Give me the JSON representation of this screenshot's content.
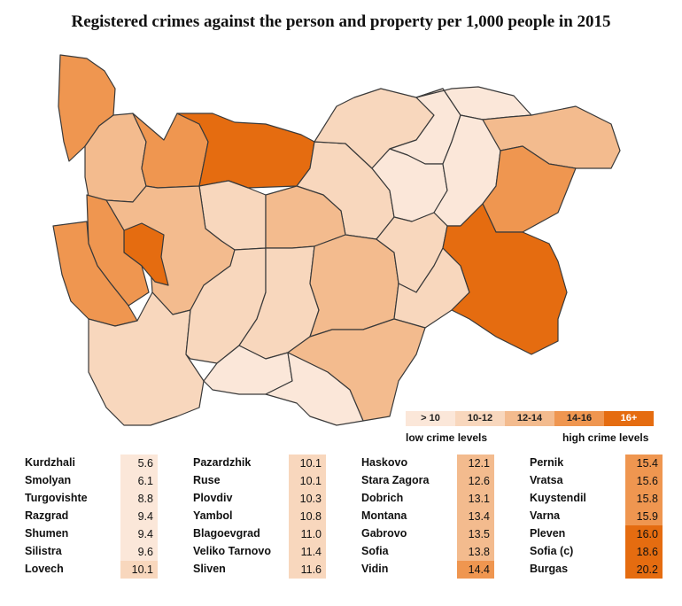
{
  "title": "Registered crimes against the person and property per 1,000 people in 2015",
  "legend": {
    "bins": [
      {
        "label": "> 10",
        "color": "#fbe7d9"
      },
      {
        "label": "10-12",
        "color": "#f8d7bd"
      },
      {
        "label": "12-14",
        "color": "#f3bb8e"
      },
      {
        "label": "14-16",
        "color": "#ef9650"
      },
      {
        "label": "16+",
        "color": "#e56c10"
      }
    ],
    "low_label": "low crime levels",
    "high_label": "high crime levels"
  },
  "columns": [
    [
      {
        "name": "Kurdzhali",
        "value": "5.6",
        "bin": 0
      },
      {
        "name": "Smolyan",
        "value": "6.1",
        "bin": 0
      },
      {
        "name": "Turgovishte",
        "value": "8.8",
        "bin": 0
      },
      {
        "name": "Razgrad",
        "value": "9.4",
        "bin": 0
      },
      {
        "name": "Shumen",
        "value": "9.4",
        "bin": 0
      },
      {
        "name": "Silistra",
        "value": "9.6",
        "bin": 0
      },
      {
        "name": "Lovech",
        "value": "10.1",
        "bin": 1
      }
    ],
    [
      {
        "name": "Pazardzhik",
        "value": "10.1",
        "bin": 1
      },
      {
        "name": "Ruse",
        "value": "10.1",
        "bin": 1
      },
      {
        "name": "Plovdiv",
        "value": "10.3",
        "bin": 1
      },
      {
        "name": "Yambol",
        "value": "10.8",
        "bin": 1
      },
      {
        "name": "Blagoevgrad",
        "value": "11.0",
        "bin": 1
      },
      {
        "name": "Veliko Tarnovo",
        "value": "11.4",
        "bin": 1
      },
      {
        "name": "Sliven",
        "value": "11.6",
        "bin": 1
      }
    ],
    [
      {
        "name": "Haskovo",
        "value": "12.1",
        "bin": 2
      },
      {
        "name": "Stara Zagora",
        "value": "12.6",
        "bin": 2
      },
      {
        "name": "Dobrich",
        "value": "13.1",
        "bin": 2
      },
      {
        "name": "Montana",
        "value": "13.4",
        "bin": 2
      },
      {
        "name": "Gabrovo",
        "value": "13.5",
        "bin": 2
      },
      {
        "name": "Sofia",
        "value": "13.8",
        "bin": 2
      },
      {
        "name": "Vidin",
        "value": "14.4",
        "bin": 3
      }
    ],
    [
      {
        "name": "Pernik",
        "value": "15.4",
        "bin": 3
      },
      {
        "name": "Vratsa",
        "value": "15.6",
        "bin": 3
      },
      {
        "name": "Kuystendil",
        "value": "15.8",
        "bin": 3
      },
      {
        "name": "Varna",
        "value": "15.9",
        "bin": 3
      },
      {
        "name": "Pleven",
        "value": "16.0",
        "bin": 4
      },
      {
        "name": "Sofia (c)",
        "value": "18.6",
        "bin": 4
      },
      {
        "name": "Burgas",
        "value": "20.2",
        "bin": 4
      }
    ]
  ],
  "regions": [
    {
      "name": "Vidin",
      "bin": 3
    },
    {
      "name": "Montana",
      "bin": 2
    },
    {
      "name": "Vratsa",
      "bin": 3
    },
    {
      "name": "Pleven",
      "bin": 4
    },
    {
      "name": "Lovech",
      "bin": 1
    },
    {
      "name": "Veliko Tarnovo",
      "bin": 1
    },
    {
      "name": "Ruse",
      "bin": 1
    },
    {
      "name": "Razgrad",
      "bin": 0
    },
    {
      "name": "Silistra",
      "bin": 0
    },
    {
      "name": "Turgovishte",
      "bin": 0
    },
    {
      "name": "Shumen",
      "bin": 0
    },
    {
      "name": "Dobrich",
      "bin": 2
    },
    {
      "name": "Varna",
      "bin": 3
    },
    {
      "name": "Gabrovo",
      "bin": 2
    },
    {
      "name": "Sofia",
      "bin": 2
    },
    {
      "name": "Sofia (c)",
      "bin": 4
    },
    {
      "name": "Pernik",
      "bin": 3
    },
    {
      "name": "Kuystendil",
      "bin": 3
    },
    {
      "name": "Blagoevgrad",
      "bin": 1
    },
    {
      "name": "Pazardzhik",
      "bin": 1
    },
    {
      "name": "Plovdiv",
      "bin": 1
    },
    {
      "name": "Stara Zagora",
      "bin": 2
    },
    {
      "name": "Sliven",
      "bin": 1
    },
    {
      "name": "Yambol",
      "bin": 1
    },
    {
      "name": "Burgas",
      "bin": 4
    },
    {
      "name": "Haskovo",
      "bin": 2
    },
    {
      "name": "Smolyan",
      "bin": 0
    },
    {
      "name": "Kurdzhali",
      "bin": 0
    }
  ]
}
